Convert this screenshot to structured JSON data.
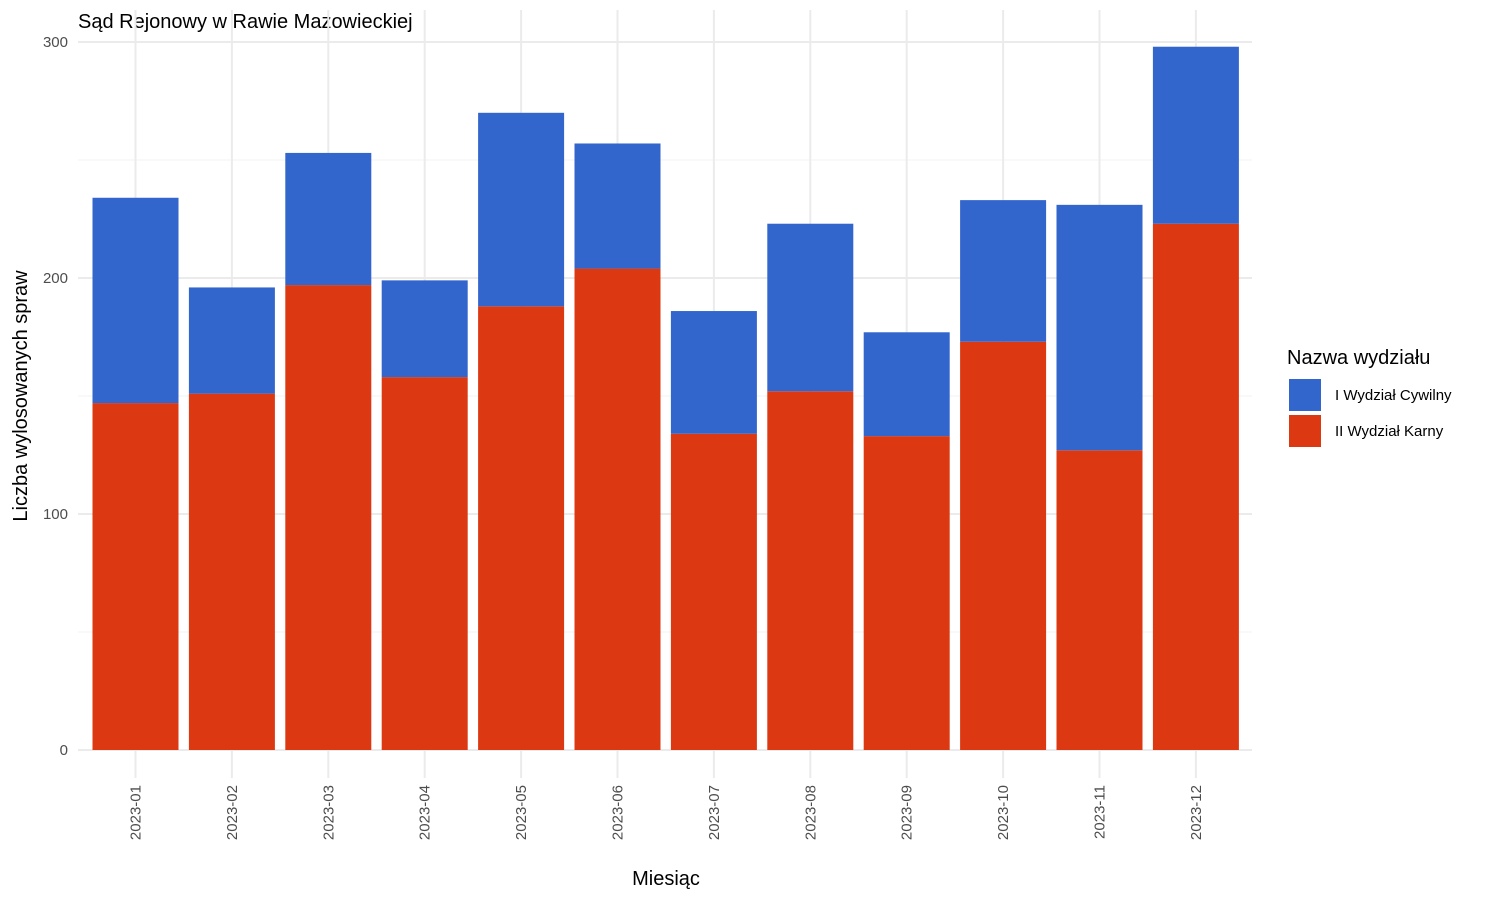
{
  "chart_data": {
    "type": "bar",
    "stacked": true,
    "title": "Sąd Rejonowy w Rawie Mazowieckiej",
    "xlabel": "Miesiąc",
    "ylabel": "Liczba wylosowanych spraw",
    "ylim": [
      0,
      300
    ],
    "yticks": [
      "0",
      "100",
      "200",
      "300"
    ],
    "grid": true,
    "categories": [
      "2023-01",
      "2023-02",
      "2023-03",
      "2023-04",
      "2023-05",
      "2023-06",
      "2023-07",
      "2023-08",
      "2023-09",
      "2023-10",
      "2023-11",
      "2023-12"
    ],
    "series": [
      {
        "name": "I Wydział Cywilny",
        "color": "#3366cc",
        "values": [
          87,
          45,
          56,
          41,
          82,
          53,
          52,
          71,
          44,
          60,
          104,
          75
        ]
      },
      {
        "name": "II Wydział Karny",
        "color": "#dc3912",
        "values": [
          147,
          151,
          197,
          158,
          188,
          204,
          134,
          152,
          133,
          173,
          127,
          223
        ]
      }
    ],
    "legend": {
      "title": "Nazwa wydziału",
      "position": "right"
    }
  }
}
